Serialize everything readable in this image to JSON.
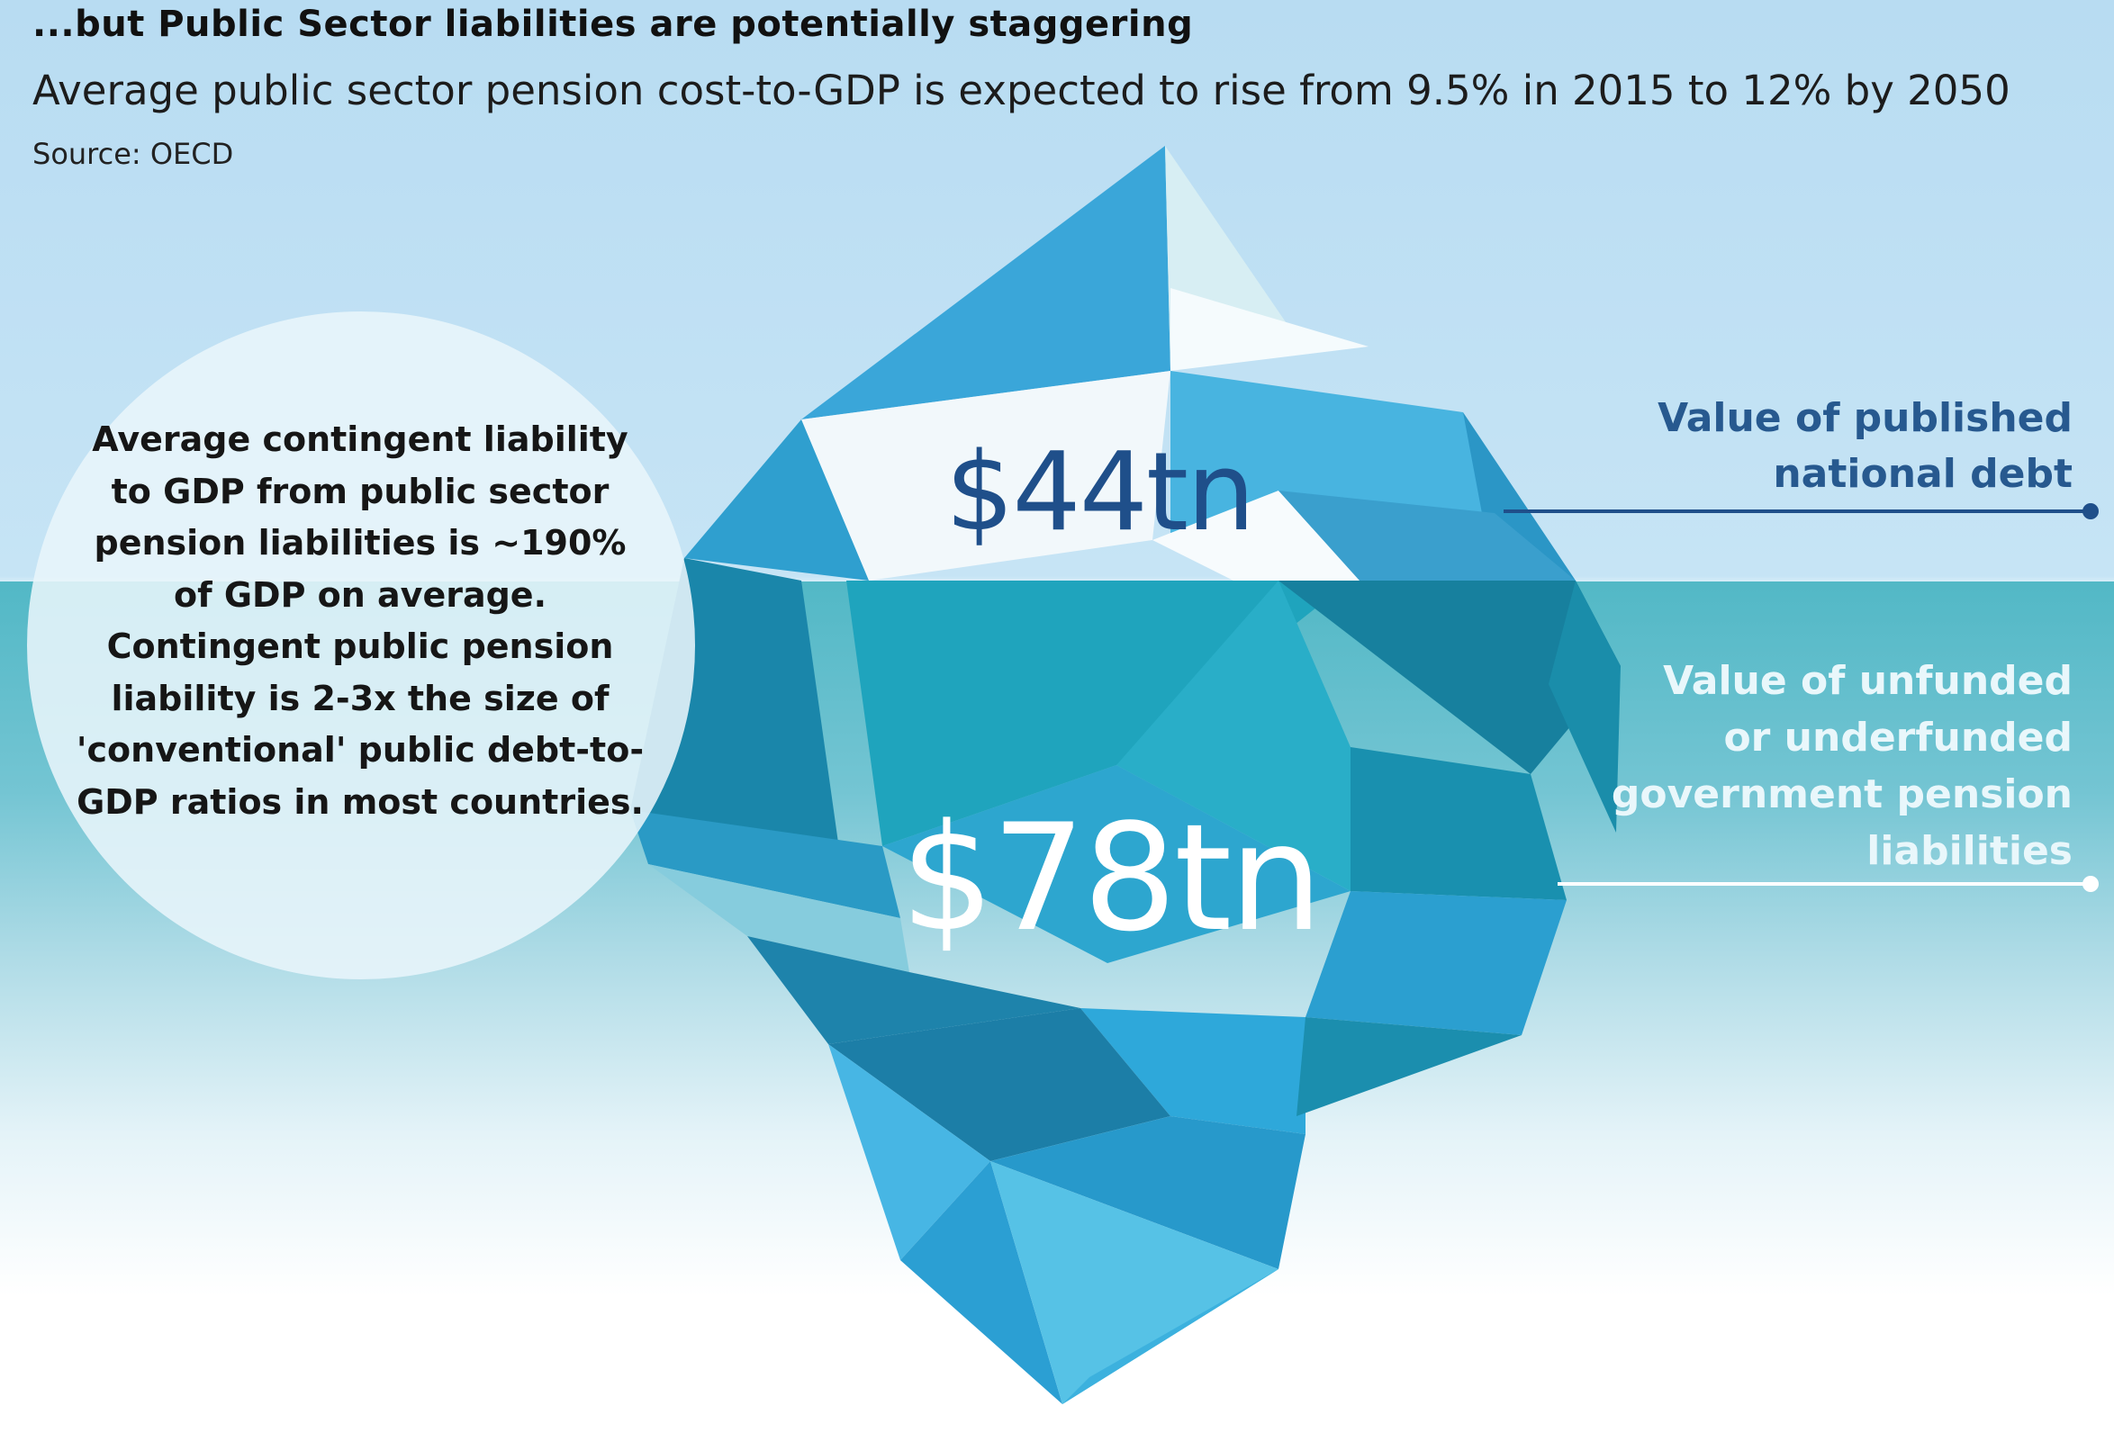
{
  "header": {
    "title": "...but Public Sector liabilities are potentially staggering",
    "subtitle": "Average public sector pension cost-to-GDP is expected to rise from 9.5% in 2015 to 12% by 2050",
    "source": "Source: OECD"
  },
  "callout": {
    "text": "Average contingent liability to GDP from public sector pension liabilities is ~190% of GDP on average. Contingent public pension liability is 2-3x the size of 'conventional' public debt-to-GDP ratios in most countries."
  },
  "iceberg": {
    "above_water_value": "$44tn",
    "below_water_value": "$78tn",
    "above_water_label": "Value of published national debt",
    "below_water_label": "Value of unfunded or underfunded government pension liabilities"
  },
  "colors": {
    "sky": "#c6e4f5",
    "water": "#52b8c6",
    "ice_dark": "#1a8aa8",
    "ice_mid": "#2ea4d4",
    "ice_light": "#8fd4e8",
    "top_value_text": "#1f4f8a",
    "top_label_text": "#27598f",
    "bottom_label_text": "#e9f7fb"
  }
}
